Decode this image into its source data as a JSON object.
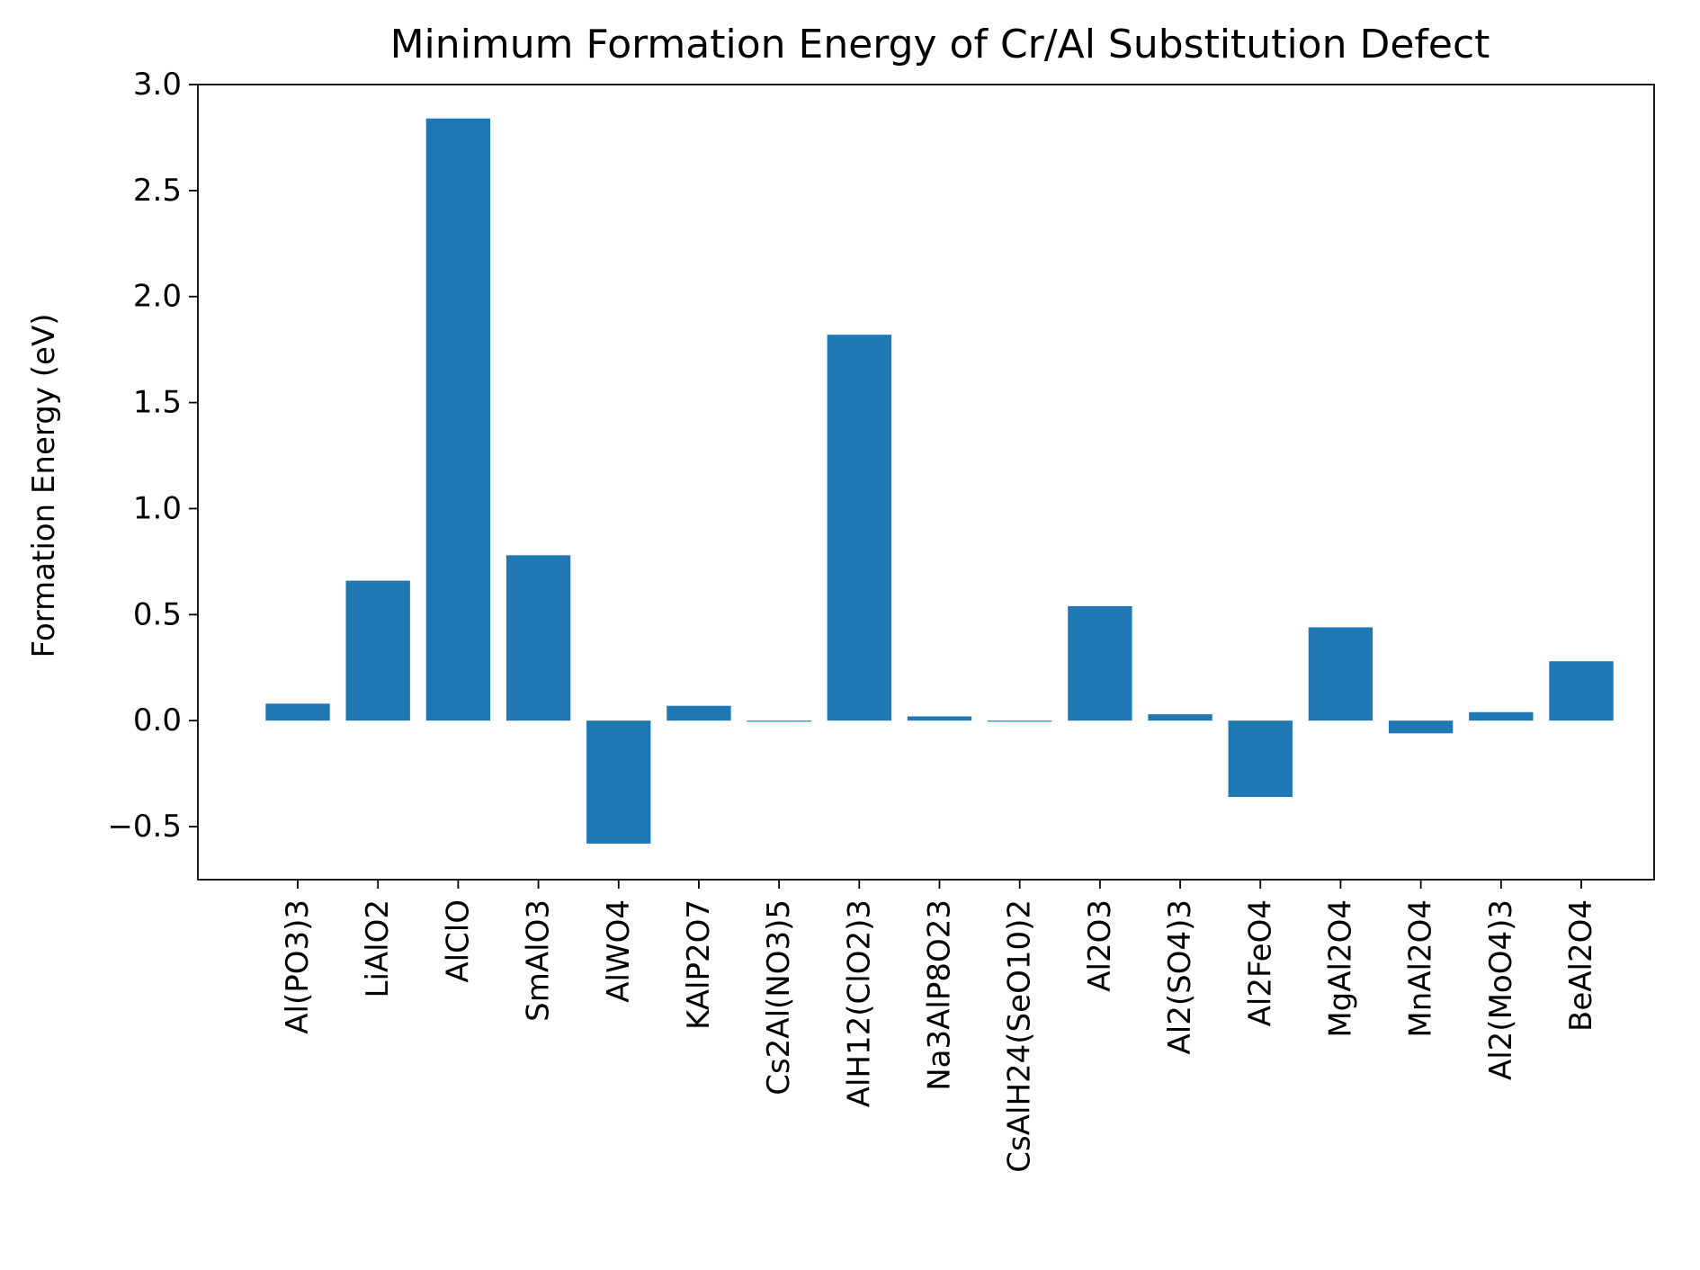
{
  "chart_data": {
    "type": "bar",
    "title": "Minimum Formation Energy of Cr/Al Substitution Defect",
    "xlabel": "",
    "ylabel": "Formation Energy (eV)",
    "categories": [
      "Al(PO3)3",
      "LiAlO2",
      "AlClO",
      "SmAlO3",
      "AlWO4",
      "KAlP2O7",
      "Cs2Al(NO3)5",
      "AlH12(ClO2)3",
      "Na3AlP8O23",
      "CsAlH24(SeO10)2",
      "Al2O3",
      "Al2(SO4)3",
      "Al2FeO4",
      "MgAl2O4",
      "MnAl2O4",
      "Al2(MoO4)3",
      "BeAl2O4"
    ],
    "values": [
      0.08,
      0.66,
      2.84,
      0.78,
      -0.58,
      0.07,
      -0.005,
      1.82,
      0.02,
      -0.005,
      0.54,
      0.03,
      -0.36,
      0.44,
      -0.06,
      0.04,
      0.28
    ],
    "ylim": [
      -0.75,
      3.0
    ],
    "yticks": [
      -0.5,
      0.0,
      0.5,
      1.0,
      1.5,
      2.0,
      2.5,
      3.0
    ],
    "ytick_labels": [
      "−0.5",
      "0.0",
      "0.5",
      "1.0",
      "1.5",
      "2.0",
      "2.5",
      "3.0"
    ],
    "bar_color": "#1f77b4",
    "grid": false,
    "legend": "none"
  }
}
